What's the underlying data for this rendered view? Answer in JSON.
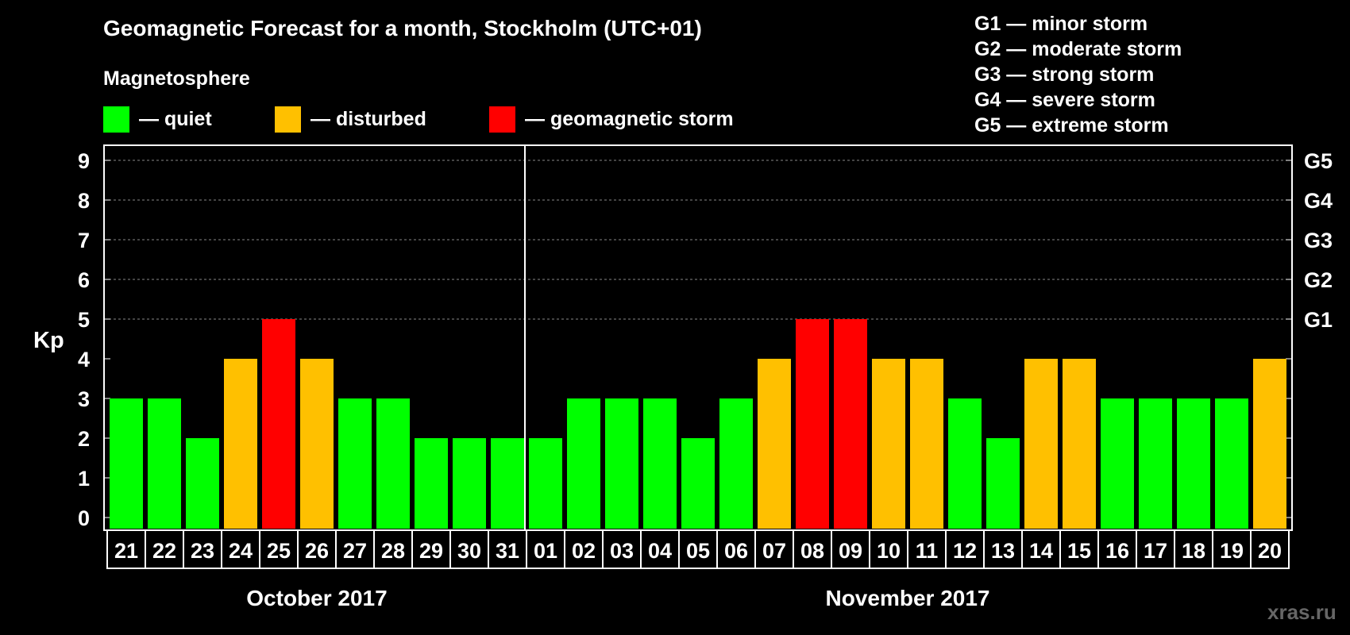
{
  "header": {
    "title": "Geomagnetic Forecast for a month, Stockholm (UTC+01)",
    "magnetosphere_label": "Magnetosphere"
  },
  "legend": {
    "quiet": {
      "label": "— quiet",
      "color": "#00ff00"
    },
    "disturbed": {
      "label": "— disturbed",
      "color": "#ffc000"
    },
    "storm": {
      "label": "— geomagnetic storm",
      "color": "#ff0000"
    }
  },
  "g_legend": [
    "G1 — minor storm",
    "G2 — moderate storm",
    "G3 — strong storm",
    "G4 — severe storm",
    "G5 — extreme storm"
  ],
  "watermark": "xras.ru",
  "chart_data": {
    "type": "bar",
    "title": "Geomagnetic Forecast for a month, Stockholm (UTC+01)",
    "ylabel": "Kp",
    "ylim": [
      0,
      9
    ],
    "yticks": [
      0,
      1,
      2,
      3,
      4,
      5,
      6,
      7,
      8,
      9
    ],
    "right_ticks": [
      {
        "value": 5,
        "label": "G1"
      },
      {
        "value": 6,
        "label": "G2"
      },
      {
        "value": 7,
        "label": "G3"
      },
      {
        "value": 8,
        "label": "G4"
      },
      {
        "value": 9,
        "label": "G5"
      }
    ],
    "categories": [
      "21",
      "22",
      "23",
      "24",
      "25",
      "26",
      "27",
      "28",
      "29",
      "30",
      "31",
      "01",
      "02",
      "03",
      "04",
      "05",
      "06",
      "07",
      "08",
      "09",
      "10",
      "11",
      "12",
      "13",
      "14",
      "15",
      "16",
      "17",
      "18",
      "19",
      "20"
    ],
    "values": [
      3,
      3,
      2,
      4,
      5,
      4,
      3,
      3,
      2,
      2,
      2,
      2,
      3,
      3,
      3,
      2,
      3,
      4,
      5,
      5,
      4,
      4,
      3,
      2,
      4,
      4,
      3,
      3,
      3,
      3,
      4
    ],
    "levels": [
      "quiet",
      "quiet",
      "quiet",
      "disturbed",
      "storm",
      "disturbed",
      "quiet",
      "quiet",
      "quiet",
      "quiet",
      "quiet",
      "quiet",
      "quiet",
      "quiet",
      "quiet",
      "quiet",
      "quiet",
      "disturbed",
      "storm",
      "storm",
      "disturbed",
      "disturbed",
      "quiet",
      "quiet",
      "disturbed",
      "disturbed",
      "quiet",
      "quiet",
      "quiet",
      "quiet",
      "disturbed"
    ],
    "months": [
      {
        "label": "October 2017",
        "days": 11
      },
      {
        "label": "November 2017",
        "days": 20
      }
    ],
    "grid": true,
    "grid_from": 5
  }
}
